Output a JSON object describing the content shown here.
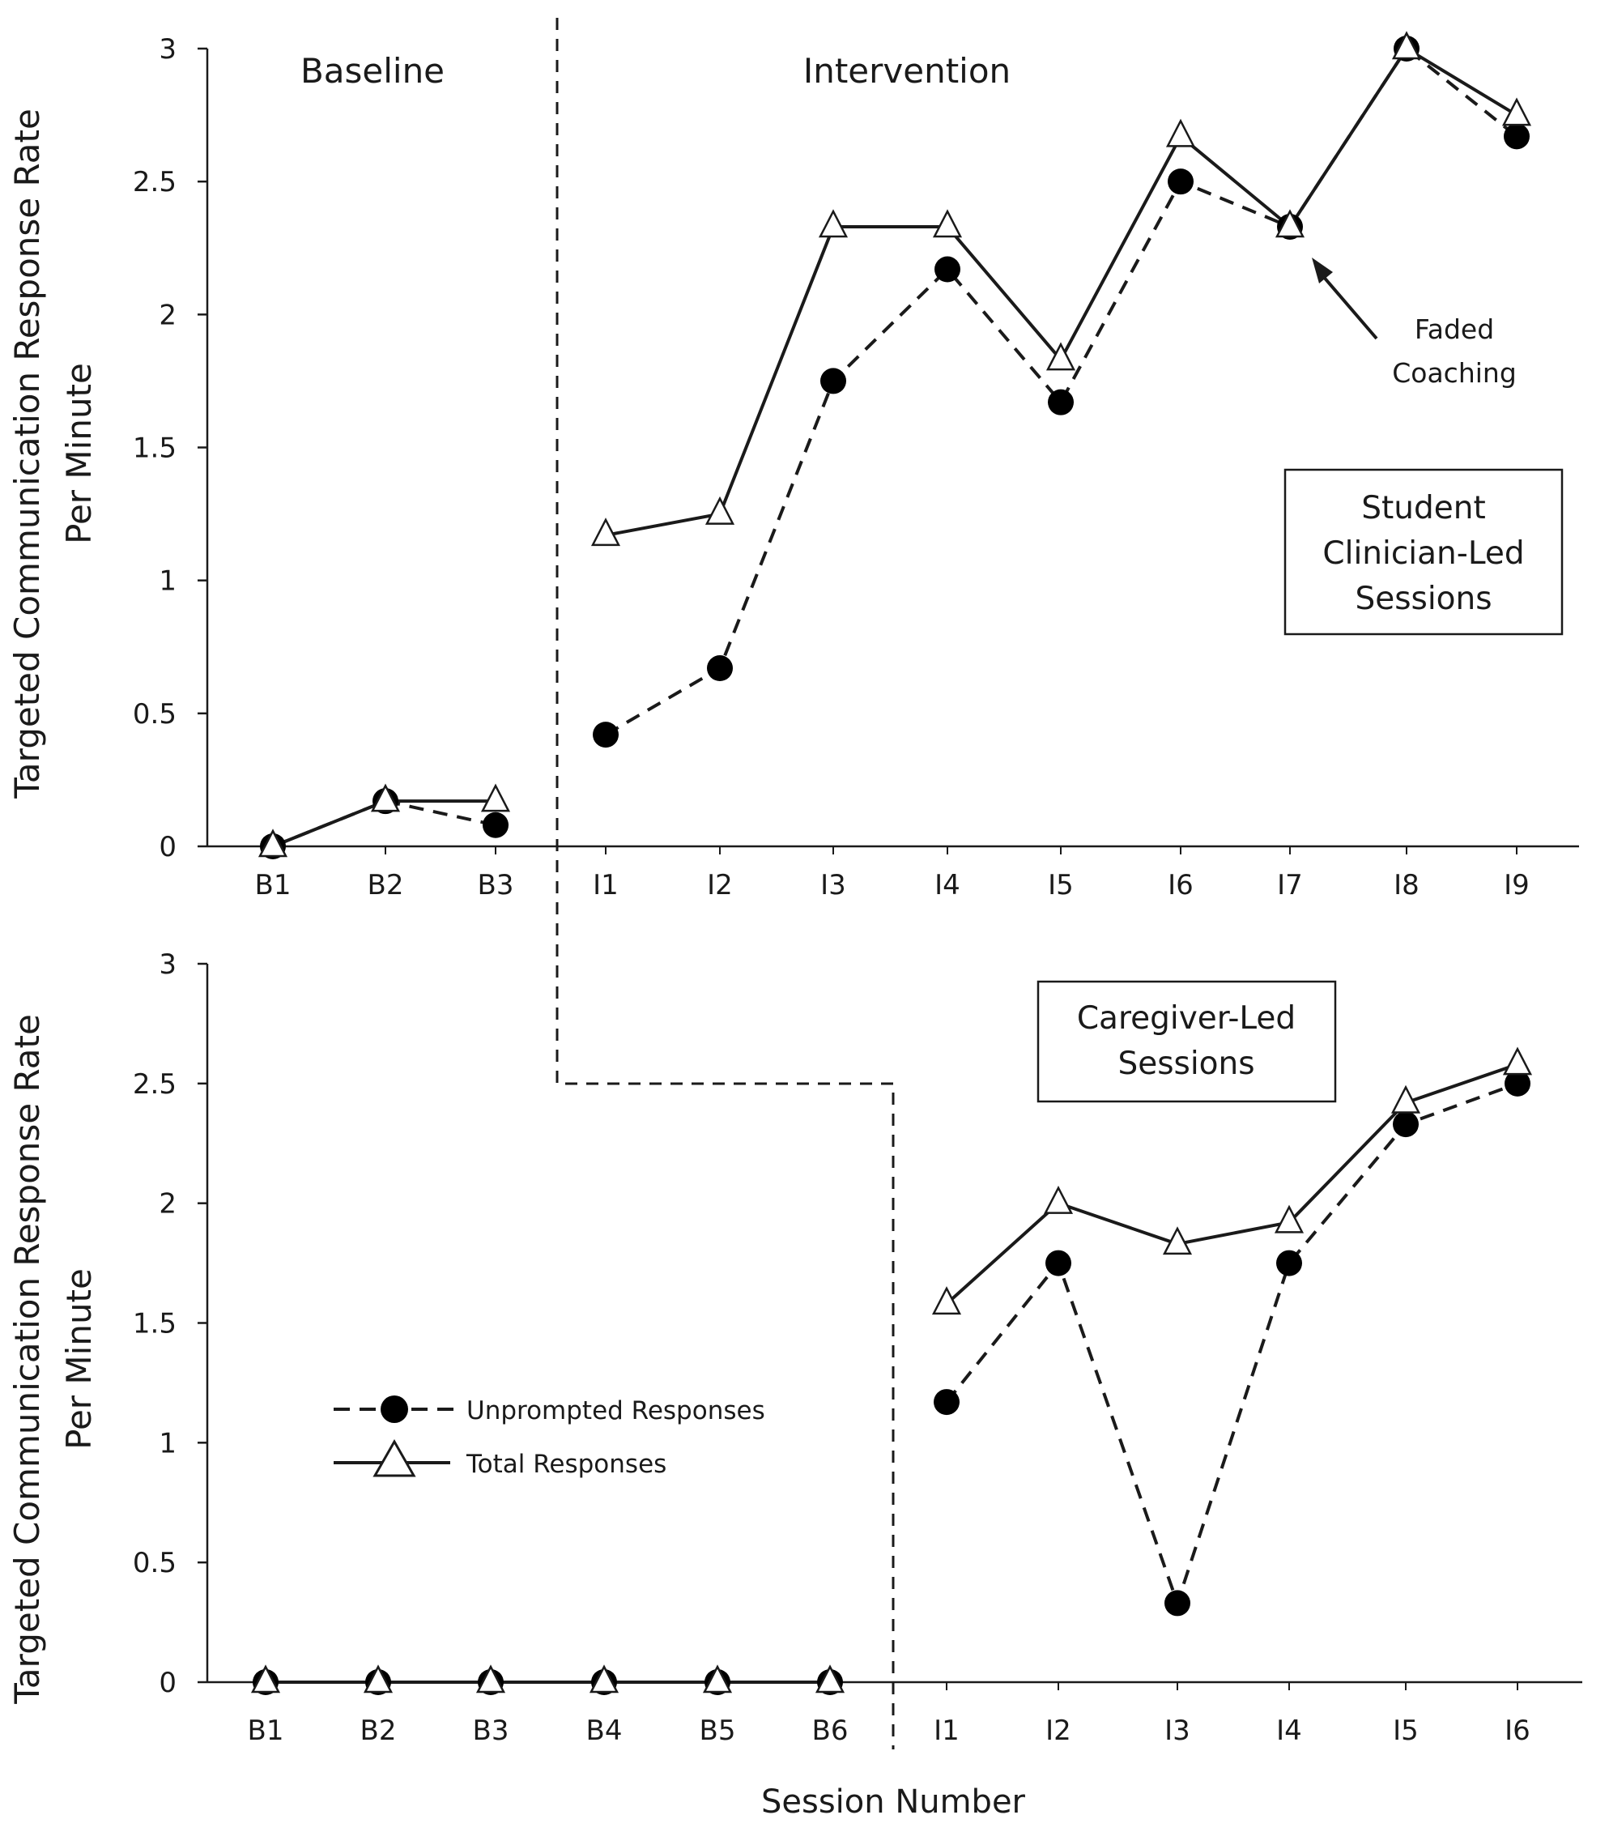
{
  "chart_data": [
    {
      "type": "line",
      "panel": "top",
      "ylabel_line1": "Targeted Communication Response Rate",
      "ylabel_line2": "Per Minute",
      "ylim": [
        0,
        3
      ],
      "yticks": [
        "0",
        "0.5",
        "1",
        "1.5",
        "2",
        "2.5",
        "3"
      ],
      "categories": [
        "B1",
        "B2",
        "B3",
        "I1",
        "I2",
        "I3",
        "I4",
        "I5",
        "I6",
        "I7",
        "I8",
        "I9"
      ],
      "phases": [
        {
          "label": "Baseline",
          "categories": [
            "B1",
            "B2",
            "B3"
          ]
        },
        {
          "label": "Intervention",
          "categories": [
            "I1",
            "I2",
            "I3",
            "I4",
            "I5",
            "I6",
            "I7",
            "I8",
            "I9"
          ]
        }
      ],
      "box_label": [
        "Student",
        "Clinician-Led",
        "Sessions"
      ],
      "annotation": {
        "text": [
          "Faded",
          "Coaching"
        ],
        "points_to": "I7"
      },
      "series": [
        {
          "name": "Unprompted Responses",
          "marker": "circle",
          "line": "dashed",
          "values": [
            0,
            0.17,
            0.08,
            0.42,
            0.67,
            1.75,
            2.17,
            1.67,
            2.5,
            2.33,
            3.0,
            2.67
          ]
        },
        {
          "name": "Total Responses",
          "marker": "triangle",
          "line": "solid",
          "values": [
            0,
            0.17,
            0.17,
            1.17,
            1.25,
            2.33,
            2.33,
            1.83,
            2.67,
            2.33,
            3.0,
            2.75
          ]
        }
      ]
    },
    {
      "type": "line",
      "panel": "bottom",
      "ylabel_line1": "Targeted Communication Response Rate",
      "ylabel_line2": "Per Minute",
      "ylim": [
        0,
        3
      ],
      "yticks": [
        "0",
        "0.5",
        "1",
        "1.5",
        "2",
        "2.5",
        "3"
      ],
      "categories": [
        "B1",
        "B2",
        "B3",
        "B4",
        "B5",
        "B6",
        "I1",
        "I2",
        "I3",
        "I4",
        "I5",
        "I6"
      ],
      "box_label": [
        "Caregiver-Led",
        "Sessions"
      ],
      "xlabel": "Session Number",
      "legend": [
        {
          "label": "Unprompted Responses",
          "marker": "circle",
          "line": "dashed"
        },
        {
          "label": "Total Responses",
          "marker": "triangle",
          "line": "solid"
        }
      ],
      "series": [
        {
          "name": "Unprompted Responses",
          "marker": "circle",
          "line": "dashed",
          "values": [
            0,
            0,
            0,
            0,
            0,
            0,
            1.17,
            1.75,
            0.33,
            1.75,
            2.33,
            2.5
          ]
        },
        {
          "name": "Total Responses",
          "marker": "triangle",
          "line": "solid",
          "values": [
            0,
            0,
            0,
            0,
            0,
            0,
            1.58,
            2.0,
            1.83,
            1.92,
            2.42,
            2.58
          ]
        }
      ]
    }
  ]
}
